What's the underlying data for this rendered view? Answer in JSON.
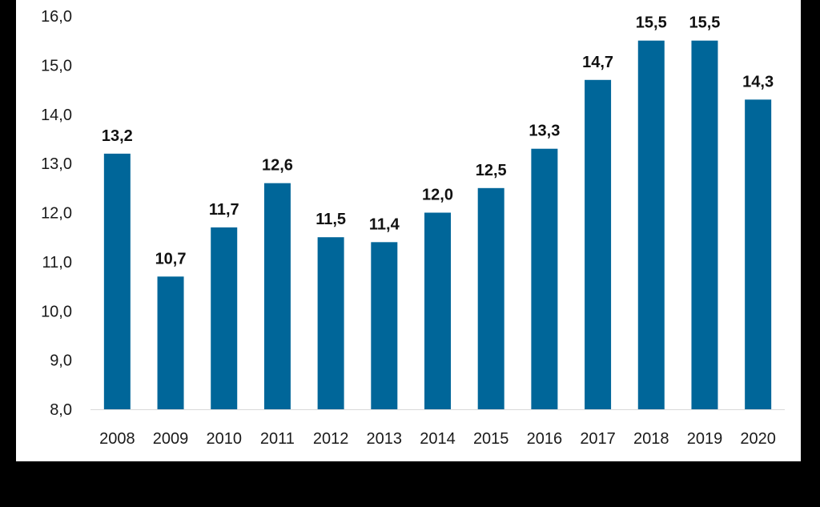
{
  "chart_data": {
    "type": "bar",
    "categories": [
      "2008",
      "2009",
      "2010",
      "2011",
      "2012",
      "2013",
      "2014",
      "2015",
      "2016",
      "2017",
      "2018",
      "2019",
      "2020"
    ],
    "values": [
      13.2,
      10.7,
      11.7,
      12.6,
      11.5,
      11.4,
      12.0,
      12.5,
      13.3,
      14.7,
      15.5,
      15.5,
      14.3
    ],
    "data_labels": [
      "13,2",
      "10,7",
      "11,7",
      "12,6",
      "11,5",
      "11,4",
      "12,0",
      "12,5",
      "13,3",
      "14,7",
      "15,5",
      "15,5",
      "14,3"
    ],
    "y_ticks": [
      "16,0",
      "15,0",
      "14,0",
      "13,0",
      "12,0",
      "11,0",
      "10,0",
      "9,0",
      "8,0"
    ],
    "ylim": [
      8,
      16
    ],
    "title": "",
    "xlabel": "",
    "ylabel": "",
    "grid": false,
    "legend": "none",
    "bar_color": "#006699"
  }
}
